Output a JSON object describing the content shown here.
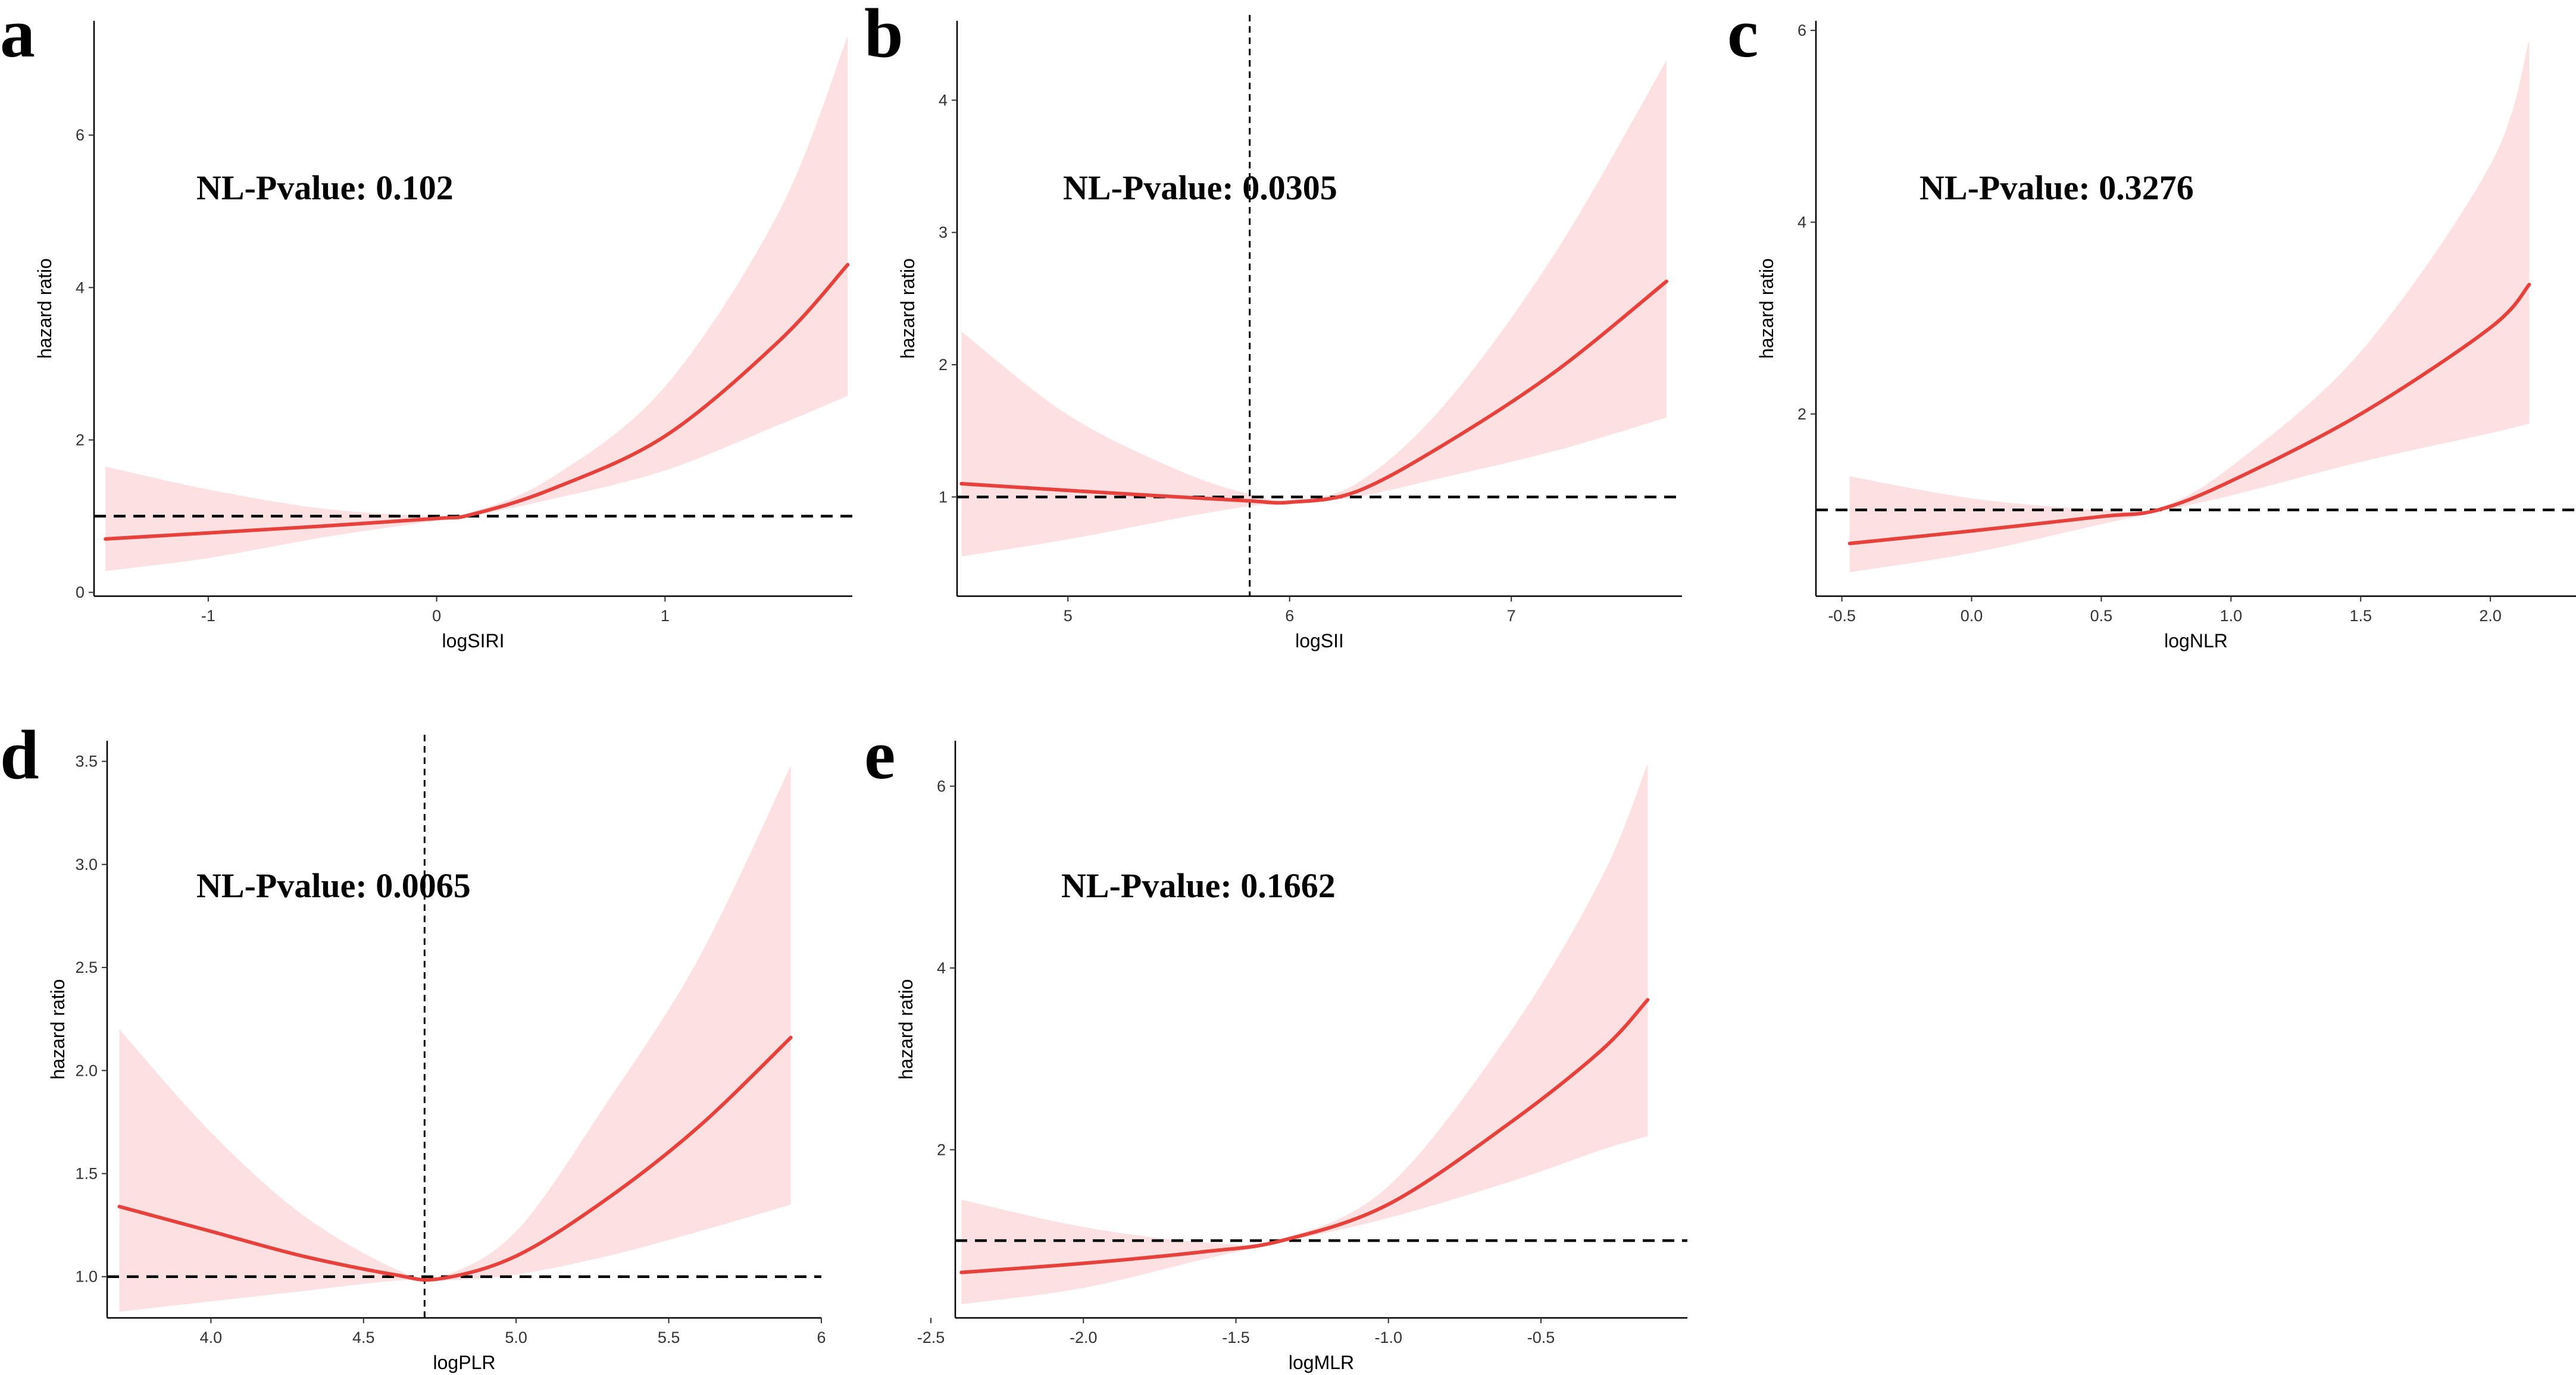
{
  "chart_data": [
    {
      "id": "a",
      "type": "line",
      "panel_label": "a",
      "annotation": "NL-Pvalue: 0.102",
      "xlabel": "logSIRI",
      "ylabel": "hazard ratio",
      "xlim": [
        -1.5,
        1.82
      ],
      "ylim": [
        -0.05,
        7.5
      ],
      "xticks": [
        -1,
        0,
        1
      ],
      "xtick_labels": [
        "-1",
        "0",
        "1"
      ],
      "yticks": [
        0,
        2,
        4,
        6
      ],
      "ytick_labels": [
        "0",
        "2",
        "4",
        "6"
      ],
      "reference_hr": 1,
      "reference_x": null,
      "series": [
        {
          "name": "hazard ratio",
          "x": [
            -1.45,
            -1.0,
            -0.5,
            0.0,
            0.15,
            0.5,
            1.0,
            1.5,
            1.8
          ],
          "y": [
            0.7,
            0.78,
            0.87,
            0.97,
            1.02,
            1.35,
            2.05,
            3.3,
            4.3
          ]
        },
        {
          "name": "95% CI lower",
          "x": [
            -1.45,
            -1.0,
            -0.5,
            0.0,
            0.15,
            0.5,
            1.0,
            1.5,
            1.8
          ],
          "y": [
            0.28,
            0.45,
            0.72,
            0.94,
            1.0,
            1.22,
            1.6,
            2.2,
            2.58
          ]
        },
        {
          "name": "95% CI upper",
          "x": [
            -1.45,
            -1.0,
            -0.5,
            0.0,
            0.15,
            0.5,
            1.0,
            1.5,
            1.8
          ],
          "y": [
            1.65,
            1.35,
            1.1,
            1.0,
            1.05,
            1.5,
            2.7,
            5.0,
            7.3
          ]
        }
      ]
    },
    {
      "id": "b",
      "type": "line",
      "panel_label": "b",
      "annotation": "NL-Pvalue: 0.0305",
      "xlabel": "logSII",
      "ylabel": "hazard ratio",
      "xlim": [
        4.5,
        7.77
      ],
      "ylim": [
        0.25,
        4.6
      ],
      "xticks": [
        5,
        6,
        7
      ],
      "xtick_labels": [
        "5",
        "6",
        "7"
      ],
      "yticks": [
        1,
        2,
        3,
        4
      ],
      "ytick_labels": [
        "1",
        "2",
        "3",
        "4"
      ],
      "reference_hr": 1,
      "reference_x": 5.82,
      "series": [
        {
          "name": "hazard ratio",
          "x": [
            4.52,
            5.0,
            5.5,
            5.82,
            6.0,
            6.3,
            6.7,
            7.2,
            7.7
          ],
          "y": [
            1.1,
            1.05,
            1.0,
            0.97,
            0.96,
            1.04,
            1.4,
            1.95,
            2.63
          ]
        },
        {
          "name": "95% CI lower",
          "x": [
            4.52,
            5.0,
            5.5,
            5.82,
            6.0,
            6.3,
            6.7,
            7.2,
            7.7
          ],
          "y": [
            0.55,
            0.68,
            0.84,
            0.93,
            0.95,
            1.0,
            1.15,
            1.35,
            1.6
          ]
        },
        {
          "name": "95% CI upper",
          "x": [
            4.52,
            5.0,
            5.5,
            5.82,
            6.0,
            6.3,
            6.7,
            7.2,
            7.7
          ],
          "y": [
            2.25,
            1.62,
            1.2,
            1.02,
            0.98,
            1.1,
            1.7,
            2.85,
            4.3
          ]
        }
      ]
    },
    {
      "id": "c",
      "type": "line",
      "panel_label": "c",
      "annotation": "NL-Pvalue: 0.3276",
      "xlabel": "logNLR",
      "ylabel": "hazard ratio",
      "xlim": [
        -0.6,
        2.33
      ],
      "ylim": [
        0.1,
        6.1
      ],
      "xticks": [
        -0.5,
        0.0,
        0.5,
        1.0,
        1.5,
        2.0
      ],
      "xtick_labels": [
        "-0.5",
        "0.0",
        "0.5",
        "1.0",
        "1.5",
        "2.0"
      ],
      "yticks": [
        2,
        4,
        6
      ],
      "ytick_labels": [
        "2",
        "4",
        "6"
      ],
      "reference_hr": 1,
      "reference_x": null,
      "series": [
        {
          "name": "hazard ratio",
          "x": [
            -0.47,
            0.0,
            0.5,
            0.72,
            1.0,
            1.5,
            2.0,
            2.15
          ],
          "y": [
            0.65,
            0.78,
            0.93,
            1.0,
            1.3,
            2.0,
            2.9,
            3.35
          ]
        },
        {
          "name": "95% CI lower",
          "x": [
            -0.47,
            0.0,
            0.5,
            0.72,
            1.0,
            1.5,
            2.0,
            2.15
          ],
          "y": [
            0.35,
            0.55,
            0.85,
            0.98,
            1.15,
            1.5,
            1.8,
            1.9
          ]
        },
        {
          "name": "95% CI upper",
          "x": [
            -0.47,
            0.0,
            0.5,
            0.72,
            1.0,
            1.5,
            2.0,
            2.15
          ],
          "y": [
            1.35,
            1.12,
            1.0,
            1.02,
            1.45,
            2.65,
            4.6,
            5.9
          ]
        }
      ]
    },
    {
      "id": "d",
      "type": "line",
      "panel_label": "d",
      "annotation": "NL-Pvalue: 0.0065",
      "xlabel": "logPLR",
      "ylabel": "hazard ratio",
      "xlim": [
        3.66,
        6.0
      ],
      "ylim": [
        0.8,
        3.6
      ],
      "xticks": [
        4.0,
        4.5,
        5.0,
        5.5,
        6.0
      ],
      "xtick_labels": [
        "4.0",
        "4.5",
        "5.0",
        "5.5",
        "6"
      ],
      "yticks": [
        1.0,
        1.5,
        2.0,
        2.5,
        3.0,
        3.5
      ],
      "ytick_labels": [
        "1.0",
        "1.5",
        "2.0",
        "2.5",
        "3.0",
        "3.5"
      ],
      "reference_hr": 1,
      "reference_x": 4.7,
      "series": [
        {
          "name": "hazard ratio",
          "x": [
            3.7,
            4.0,
            4.3,
            4.6,
            4.75,
            5.0,
            5.3,
            5.6,
            5.9
          ],
          "y": [
            1.34,
            1.22,
            1.1,
            1.01,
            0.99,
            1.1,
            1.38,
            1.73,
            2.16
          ]
        },
        {
          "name": "95% CI lower",
          "x": [
            3.7,
            4.0,
            4.3,
            4.6,
            4.75,
            5.0,
            5.3,
            5.6,
            5.9
          ],
          "y": [
            0.83,
            0.88,
            0.93,
            0.98,
            0.98,
            1.01,
            1.1,
            1.22,
            1.35
          ]
        },
        {
          "name": "95% CI upper",
          "x": [
            3.7,
            4.0,
            4.3,
            4.6,
            4.75,
            5.0,
            5.3,
            5.6,
            5.9
          ],
          "y": [
            2.2,
            1.7,
            1.3,
            1.04,
            1.0,
            1.22,
            1.85,
            2.55,
            3.48
          ]
        }
      ]
    },
    {
      "id": "e",
      "type": "line",
      "panel_label": "e",
      "annotation": "NL-Pvalue: 0.1662",
      "xlabel": "logMLR",
      "ylabel": "hazard ratio",
      "xlim": [
        -2.42,
        -0.02
      ],
      "ylim": [
        0.15,
        6.5
      ],
      "xticks": [
        -2.5,
        -2.0,
        -1.5,
        -1.0,
        -0.5
      ],
      "xtick_labels": [
        "-2.5",
        "-2.0",
        "-1.5",
        "-1.0",
        "-0.5"
      ],
      "yticks": [
        2,
        4,
        6
      ],
      "ytick_labels": [
        "2",
        "4",
        "6"
      ],
      "reference_hr": 1,
      "reference_x": null,
      "series": [
        {
          "name": "hazard ratio",
          "x": [
            -2.4,
            -2.0,
            -1.6,
            -1.35,
            -1.0,
            -0.6,
            -0.3,
            -0.15
          ],
          "y": [
            0.65,
            0.75,
            0.88,
            1.0,
            1.4,
            2.3,
            3.1,
            3.65
          ]
        },
        {
          "name": "95% CI lower",
          "x": [
            -2.4,
            -2.0,
            -1.6,
            -1.35,
            -1.0,
            -0.6,
            -0.3,
            -0.15
          ],
          "y": [
            0.3,
            0.48,
            0.8,
            0.98,
            1.25,
            1.65,
            2.0,
            2.15
          ]
        },
        {
          "name": "95% CI upper",
          "x": [
            -2.4,
            -2.0,
            -1.6,
            -1.35,
            -1.0,
            -0.6,
            -0.3,
            -0.15
          ],
          "y": [
            1.45,
            1.15,
            0.98,
            1.02,
            1.6,
            3.3,
            5.0,
            6.25
          ]
        }
      ]
    }
  ]
}
